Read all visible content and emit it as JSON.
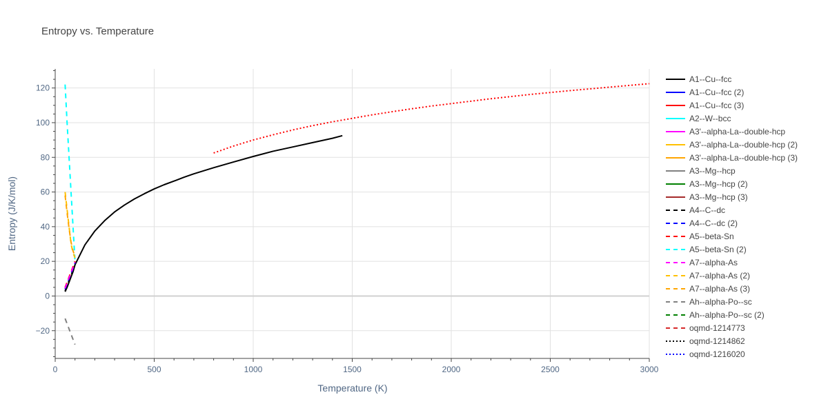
{
  "chart_data": {
    "type": "line",
    "title": "Entropy vs. Temperature",
    "xlabel": "Temperature (K)",
    "ylabel": "Entropy (J/K/mol)",
    "xlim": [
      0,
      3000
    ],
    "ylim": [
      -36,
      131
    ],
    "x_ticks": [
      0,
      500,
      1000,
      1500,
      2000,
      2500,
      3000
    ],
    "x_tick_labels": [
      "0",
      "500",
      "1000",
      "1500",
      "2000",
      "2500",
      "3000"
    ],
    "y_ticks": [
      -20,
      0,
      20,
      40,
      60,
      80,
      100,
      120
    ],
    "y_tick_labels": [
      "−20",
      "0",
      "20",
      "40",
      "60",
      "80",
      "100",
      "120"
    ],
    "grid": true,
    "legend_position": "right",
    "series": [
      {
        "name": "A1--Cu--fcc",
        "color": "#000000",
        "dash": "solid",
        "x": [
          50,
          60,
          70,
          80,
          90,
          100,
          150,
          200,
          250,
          300,
          350,
          400,
          450,
          500,
          550,
          600,
          650,
          700,
          800,
          900,
          1000,
          1100,
          1200,
          1300,
          1400,
          1450
        ],
        "y": [
          2.5,
          5,
          8,
          11,
          14,
          18,
          29.5,
          37.5,
          43.5,
          48.5,
          52.5,
          56,
          59,
          61.8,
          64.2,
          66.3,
          68.5,
          70.5,
          74,
          77.3,
          80.5,
          83.5,
          86,
          88.5,
          91,
          92.5
        ]
      },
      {
        "name": "A1--Cu--fcc (2)",
        "color": "#0000ff",
        "dash": "solid",
        "x": [],
        "y": []
      },
      {
        "name": "A1--Cu--fcc (3)",
        "color": "#ff0000",
        "dash": "solid",
        "x": [],
        "y": []
      },
      {
        "name": "A2--W--bcc",
        "color": "#00ffff",
        "dash": "solid",
        "x": [],
        "y": []
      },
      {
        "name": "A3'--alpha-La--double-hcp",
        "color": "#ff00ff",
        "dash": "solid",
        "x": [],
        "y": []
      },
      {
        "name": "A3'--alpha-La--double-hcp (2)",
        "color": "#ffc000",
        "dash": "solid",
        "x": [],
        "y": []
      },
      {
        "name": "A3'--alpha-La--double-hcp (3)",
        "color": "#ffa500",
        "dash": "solid",
        "x": [],
        "y": []
      },
      {
        "name": "A3--Mg--hcp",
        "color": "#808080",
        "dash": "solid",
        "x": [],
        "y": []
      },
      {
        "name": "A3--Mg--hcp (2)",
        "color": "#008000",
        "dash": "solid",
        "x": [],
        "y": []
      },
      {
        "name": "A3--Mg--hcp (3)",
        "color": "#a52a2a",
        "dash": "solid",
        "x": [],
        "y": []
      },
      {
        "name": "A4--C--dc",
        "color": "#000000",
        "dash": "dash",
        "x": [
          50,
          60,
          70,
          80,
          90,
          100
        ],
        "y": [
          3,
          6,
          9,
          12,
          15,
          18
        ]
      },
      {
        "name": "A4--C--dc (2)",
        "color": "#0000ff",
        "dash": "dash",
        "x": [
          50,
          60,
          70,
          80,
          90,
          100
        ],
        "y": [
          4,
          7,
          10,
          13,
          16,
          19
        ]
      },
      {
        "name": "A5--beta-Sn",
        "color": "#ff0000",
        "dash": "dash",
        "x": [
          50,
          60,
          70,
          80,
          90,
          100
        ],
        "y": [
          5,
          8,
          11,
          14,
          17,
          20
        ]
      },
      {
        "name": "A5--beta-Sn (2)",
        "color": "#00ffff",
        "dash": "dash",
        "x": [
          50,
          60,
          70,
          80,
          90,
          100
        ],
        "y": [
          122,
          100,
          80,
          60,
          40,
          20
        ]
      },
      {
        "name": "A7--alpha-As",
        "color": "#ff00ff",
        "dash": "dash",
        "x": [
          50,
          60,
          70,
          80,
          90,
          100
        ],
        "y": [
          4.5,
          7.5,
          10.5,
          13.5,
          16.5,
          19.5
        ]
      },
      {
        "name": "A7--alpha-As (2)",
        "color": "#ffc000",
        "dash": "dash",
        "x": [
          50,
          60,
          70,
          80,
          90,
          100
        ],
        "y": [
          60,
          50,
          40,
          30,
          25,
          22
        ]
      },
      {
        "name": "A7--alpha-As (3)",
        "color": "#ffa500",
        "dash": "dash",
        "x": [
          50,
          60,
          70,
          80,
          90,
          100
        ],
        "y": [
          58,
          48,
          39,
          31,
          26,
          23
        ]
      },
      {
        "name": "Ah--alpha-Po--sc",
        "color": "#808080",
        "dash": "dash",
        "x": [
          50,
          60,
          70,
          80,
          90,
          100
        ],
        "y": [
          -13,
          -16,
          -19,
          -22,
          -25,
          -28
        ]
      },
      {
        "name": "Ah--alpha-Po--sc (2)",
        "color": "#008000",
        "dash": "dash",
        "x": [],
        "y": []
      },
      {
        "name": "oqmd-1214773",
        "color": "#d62728",
        "dash": "dash",
        "x": [],
        "y": []
      },
      {
        "name": "oqmd-1214862",
        "color": "#000000",
        "dash": "dot",
        "x": [],
        "y": []
      },
      {
        "name": "oqmd-1216020",
        "color": "#0000ff",
        "dash": "dot",
        "x": [],
        "y": []
      },
      {
        "name": "",
        "color": "#ff0000",
        "dash": "dot",
        "in_legend": false,
        "x": [
          800,
          900,
          1000,
          1100,
          1200,
          1300,
          1400,
          1500,
          1600,
          1700,
          1800,
          1900,
          2000,
          2200,
          2400,
          2600,
          2800,
          3000
        ],
        "y": [
          82.5,
          86.5,
          90,
          93,
          95.8,
          98.3,
          100.5,
          102.5,
          104.5,
          106.3,
          108,
          109.6,
          111,
          113.8,
          116.3,
          118.5,
          120.5,
          122.5
        ]
      }
    ]
  }
}
